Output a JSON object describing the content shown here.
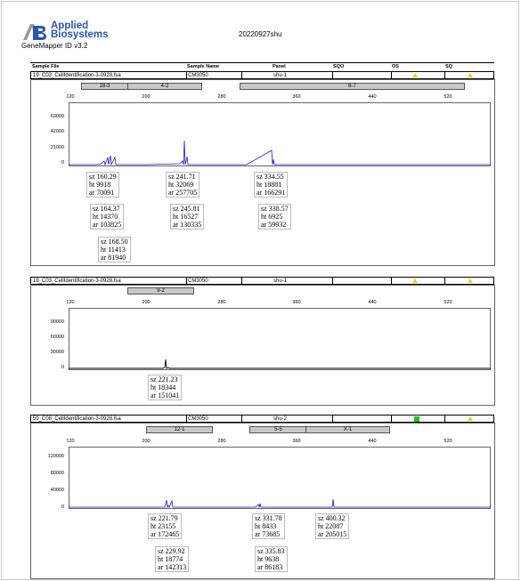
{
  "header": {
    "brand_line1": "Applied",
    "brand_line2": "Biosystems",
    "app_version": "GeneMapper ID v3.2",
    "run_title": "20220927shu"
  },
  "columns": [
    "Sample File",
    "Sample Name",
    "Panel",
    "SQO",
    "OS",
    "SQ"
  ],
  "x_ticks": [
    "120",
    "200",
    "280",
    "360",
    "440",
    "520"
  ],
  "rows": [
    {
      "file": "19_C03_CellIdentification-3-0928.fsa",
      "sample": "CM3050",
      "panel": "shu-1",
      "os": "warning",
      "sq": "warning",
      "bins": [
        "18-3",
        "4-2",
        "6-7"
      ],
      "y_ticks": [
        "63000",
        "42000",
        "21000",
        "0"
      ],
      "peaks": [
        {
          "sz": "sz 160.29",
          "ht": "ht 9918",
          "ar": "ar 70091"
        },
        {
          "sz": "sz 164.37",
          "ht": "ht 14370",
          "ar": "ar 103825"
        },
        {
          "sz": "sz 168.50",
          "ht": "ht 11413",
          "ar": "ar 81940"
        },
        {
          "sz": "sz 241.71",
          "ht": "ht 32069",
          "ar": "ar 257705"
        },
        {
          "sz": "sz 245.81",
          "ht": "ht 16527",
          "ar": "ar 130335"
        },
        {
          "sz": "sz 334.55",
          "ht": "ht 18881",
          "ar": "ar 166291"
        },
        {
          "sz": "sz 338.57",
          "ht": "ht 6925",
          "ar": "ar 59932"
        }
      ]
    },
    {
      "file": "19_C03_CellIdentification-3-0928.fsa",
      "sample": "CM3050",
      "panel": "shu-1",
      "os": "warning",
      "sq": "warning",
      "bins": [
        "9-2"
      ],
      "y_ticks": [
        "90000",
        "60000",
        "30000",
        "0"
      ],
      "peaks": [
        {
          "sz": "sz 221.23",
          "ht": "ht 18344",
          "ar": "ar 151041"
        }
      ]
    },
    {
      "file": "59_C08_CellIdentification-3-0928.fsa",
      "sample": "CM3050",
      "panel": "shu-2",
      "os": "ok",
      "sq": "warning",
      "bins": [
        "12-1",
        "5-5",
        "X-1"
      ],
      "y_ticks": [
        "120000",
        "80000",
        "40000",
        "0"
      ],
      "peaks": [
        {
          "sz": "sz 221.79",
          "ht": "ht 23155",
          "ar": "ar 172465"
        },
        {
          "sz": "sz 229.92",
          "ht": "ht 18774",
          "ar": "ar 142313"
        },
        {
          "sz": "sz 331.78",
          "ht": "ht 8433",
          "ar": "ar 73685"
        },
        {
          "sz": "sz 335.83",
          "ht": "ht 9638",
          "ar": "ar 86183"
        },
        {
          "sz": "sz 400.32",
          "ht": "ht 22087",
          "ar": "ar 205015"
        }
      ]
    }
  ],
  "colors": {
    "trace_blue": "#1a1ad0",
    "trace_black": "#000000",
    "warning": "#f0d000",
    "ok": "#1fc21f",
    "bin_fill": "#c8c8c8"
  }
}
